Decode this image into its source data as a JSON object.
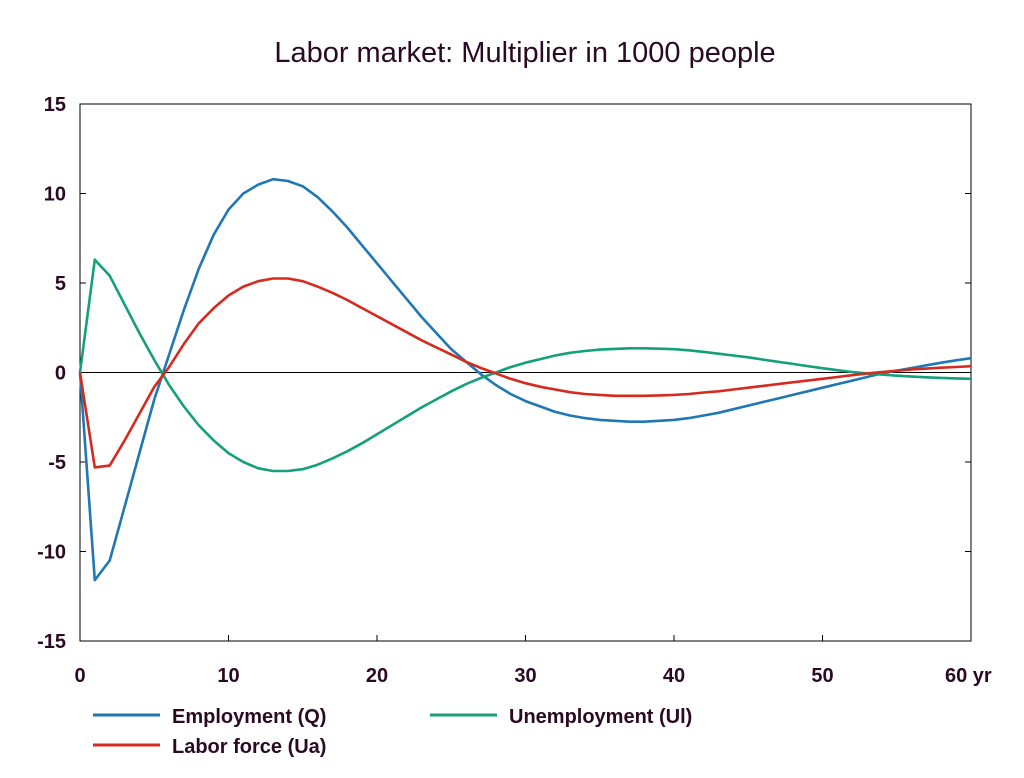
{
  "chart_data": {
    "type": "line",
    "title": "Labor market: Multiplier in 1000 people",
    "xlabel": "",
    "ylabel": "",
    "x_unit": "yr",
    "xlim": [
      0,
      60
    ],
    "ylim": [
      -15,
      15
    ],
    "x_ticks": [
      0,
      10,
      20,
      30,
      40,
      50,
      60
    ],
    "x_tick_labels": [
      "0",
      "10",
      "20",
      "30",
      "40",
      "50",
      "60 yr"
    ],
    "y_ticks": [
      15,
      10,
      5,
      0,
      -5,
      -10,
      -15
    ],
    "y_tick_labels": [
      "15",
      "10",
      "5",
      "0",
      "-5",
      "-10",
      "-15"
    ],
    "grid": false,
    "legend_position": "bottom",
    "series": [
      {
        "name": "Employment (Q)",
        "color": "#1f77b4",
        "points": [
          [
            0,
            0
          ],
          [
            1,
            -11.6
          ],
          [
            2,
            -10.5
          ],
          [
            3,
            -7.5
          ],
          [
            4,
            -4.5
          ],
          [
            5,
            -1.5
          ],
          [
            6,
            1.0
          ],
          [
            7,
            3.5
          ],
          [
            8,
            5.8
          ],
          [
            9,
            7.7
          ],
          [
            10,
            9.1
          ],
          [
            11,
            10.0
          ],
          [
            12,
            10.5
          ],
          [
            13,
            10.8
          ],
          [
            14,
            10.7
          ],
          [
            15,
            10.4
          ],
          [
            16,
            9.8
          ],
          [
            17,
            9.0
          ],
          [
            18,
            8.1
          ],
          [
            19,
            7.1
          ],
          [
            20,
            6.1
          ],
          [
            21,
            5.1
          ],
          [
            22,
            4.1
          ],
          [
            23,
            3.1
          ],
          [
            24,
            2.2
          ],
          [
            25,
            1.3
          ],
          [
            26,
            0.6
          ],
          [
            27,
            -0.1
          ],
          [
            28,
            -0.7
          ],
          [
            29,
            -1.2
          ],
          [
            30,
            -1.6
          ],
          [
            31,
            -1.9
          ],
          [
            32,
            -2.2
          ],
          [
            33,
            -2.4
          ],
          [
            34,
            -2.55
          ],
          [
            35,
            -2.65
          ],
          [
            36,
            -2.7
          ],
          [
            37,
            -2.75
          ],
          [
            38,
            -2.75
          ],
          [
            39,
            -2.7
          ],
          [
            40,
            -2.65
          ],
          [
            41,
            -2.55
          ],
          [
            42,
            -2.4
          ],
          [
            43,
            -2.25
          ],
          [
            44,
            -2.05
          ],
          [
            45,
            -1.85
          ],
          [
            46,
            -1.65
          ],
          [
            47,
            -1.45
          ],
          [
            48,
            -1.25
          ],
          [
            49,
            -1.05
          ],
          [
            50,
            -0.85
          ],
          [
            51,
            -0.65
          ],
          [
            52,
            -0.45
          ],
          [
            53,
            -0.25
          ],
          [
            54,
            -0.05
          ],
          [
            55,
            0.1
          ],
          [
            56,
            0.25
          ],
          [
            57,
            0.4
          ],
          [
            58,
            0.55
          ],
          [
            59,
            0.68
          ],
          [
            60,
            0.8
          ]
        ]
      },
      {
        "name": "Unemployment (Ul)",
        "color": "#13a07a",
        "points": [
          [
            0,
            0
          ],
          [
            1,
            6.3
          ],
          [
            2,
            5.4
          ],
          [
            3,
            3.8
          ],
          [
            4,
            2.2
          ],
          [
            5,
            0.7
          ],
          [
            6,
            -0.7
          ],
          [
            7,
            -1.9
          ],
          [
            8,
            -2.95
          ],
          [
            9,
            -3.8
          ],
          [
            10,
            -4.5
          ],
          [
            11,
            -5.0
          ],
          [
            12,
            -5.35
          ],
          [
            13,
            -5.5
          ],
          [
            14,
            -5.5
          ],
          [
            15,
            -5.4
          ],
          [
            16,
            -5.15
          ],
          [
            17,
            -4.8
          ],
          [
            18,
            -4.4
          ],
          [
            19,
            -3.95
          ],
          [
            20,
            -3.45
          ],
          [
            21,
            -2.95
          ],
          [
            22,
            -2.45
          ],
          [
            23,
            -1.95
          ],
          [
            24,
            -1.5
          ],
          [
            25,
            -1.05
          ],
          [
            26,
            -0.65
          ],
          [
            27,
            -0.3
          ],
          [
            28,
            0.0
          ],
          [
            29,
            0.3
          ],
          [
            30,
            0.55
          ],
          [
            31,
            0.75
          ],
          [
            32,
            0.95
          ],
          [
            33,
            1.1
          ],
          [
            34,
            1.2
          ],
          [
            35,
            1.28
          ],
          [
            36,
            1.32
          ],
          [
            37,
            1.35
          ],
          [
            38,
            1.35
          ],
          [
            39,
            1.33
          ],
          [
            40,
            1.3
          ],
          [
            41,
            1.24
          ],
          [
            42,
            1.15
          ],
          [
            43,
            1.05
          ],
          [
            44,
            0.95
          ],
          [
            45,
            0.85
          ],
          [
            46,
            0.72
          ],
          [
            47,
            0.6
          ],
          [
            48,
            0.48
          ],
          [
            49,
            0.36
          ],
          [
            50,
            0.24
          ],
          [
            51,
            0.13
          ],
          [
            52,
            0.03
          ],
          [
            53,
            -0.05
          ],
          [
            54,
            -0.12
          ],
          [
            55,
            -0.18
          ],
          [
            56,
            -0.23
          ],
          [
            57,
            -0.27
          ],
          [
            58,
            -0.3
          ],
          [
            59,
            -0.33
          ],
          [
            60,
            -0.35
          ]
        ]
      },
      {
        "name": "Labor force (Ua)",
        "color": "#d62a1e",
        "points": [
          [
            0,
            0
          ],
          [
            1,
            -5.3
          ],
          [
            2,
            -5.2
          ],
          [
            3,
            -3.8
          ],
          [
            4,
            -2.3
          ],
          [
            5,
            -0.8
          ],
          [
            6,
            0.3
          ],
          [
            7,
            1.6
          ],
          [
            8,
            2.75
          ],
          [
            9,
            3.6
          ],
          [
            10,
            4.3
          ],
          [
            11,
            4.8
          ],
          [
            12,
            5.1
          ],
          [
            13,
            5.25
          ],
          [
            14,
            5.25
          ],
          [
            15,
            5.1
          ],
          [
            16,
            4.8
          ],
          [
            17,
            4.45
          ],
          [
            18,
            4.05
          ],
          [
            19,
            3.6
          ],
          [
            20,
            3.15
          ],
          [
            21,
            2.7
          ],
          [
            22,
            2.25
          ],
          [
            23,
            1.8
          ],
          [
            24,
            1.4
          ],
          [
            25,
            1.0
          ],
          [
            26,
            0.6
          ],
          [
            27,
            0.25
          ],
          [
            28,
            -0.05
          ],
          [
            29,
            -0.35
          ],
          [
            30,
            -0.6
          ],
          [
            31,
            -0.8
          ],
          [
            32,
            -0.95
          ],
          [
            33,
            -1.1
          ],
          [
            34,
            -1.2
          ],
          [
            35,
            -1.25
          ],
          [
            36,
            -1.3
          ],
          [
            37,
            -1.3
          ],
          [
            38,
            -1.3
          ],
          [
            39,
            -1.28
          ],
          [
            40,
            -1.25
          ],
          [
            41,
            -1.2
          ],
          [
            42,
            -1.12
          ],
          [
            43,
            -1.05
          ],
          [
            44,
            -0.95
          ],
          [
            45,
            -0.85
          ],
          [
            46,
            -0.75
          ],
          [
            47,
            -0.65
          ],
          [
            48,
            -0.55
          ],
          [
            49,
            -0.45
          ],
          [
            50,
            -0.35
          ],
          [
            51,
            -0.25
          ],
          [
            52,
            -0.15
          ],
          [
            53,
            -0.05
          ],
          [
            54,
            0.03
          ],
          [
            55,
            0.1
          ],
          [
            56,
            0.17
          ],
          [
            57,
            0.22
          ],
          [
            58,
            0.27
          ],
          [
            59,
            0.31
          ],
          [
            60,
            0.35
          ]
        ]
      }
    ]
  }
}
